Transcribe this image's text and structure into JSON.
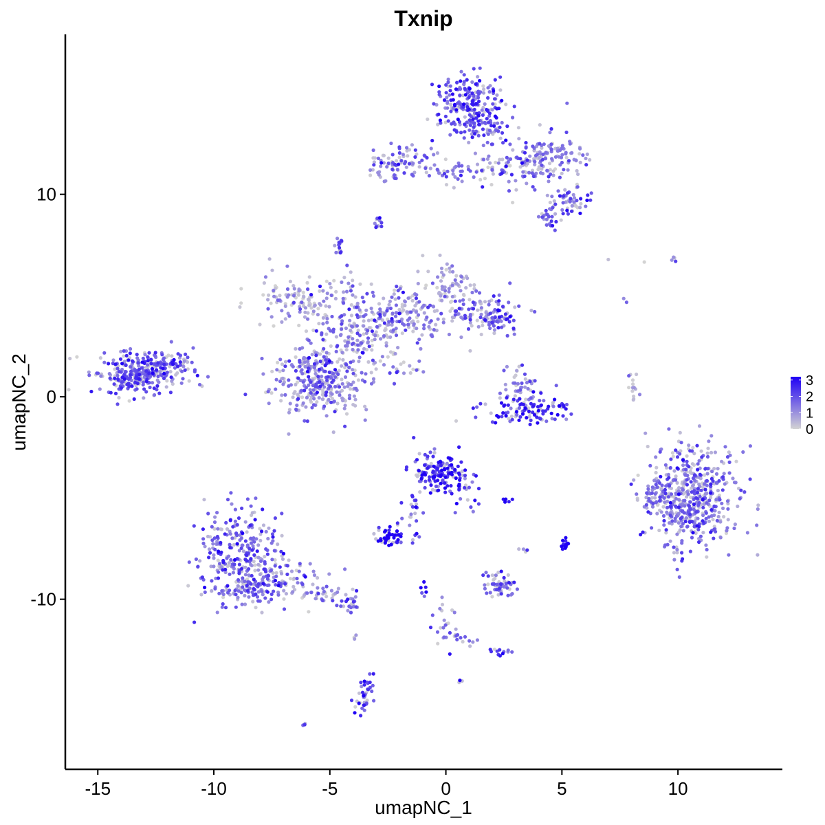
{
  "chart_data": {
    "type": "scatter",
    "title": "Txnip",
    "xlabel": "umapNC_1",
    "ylabel": "umapNC_2",
    "xlim": [
      -16.4,
      14.5
    ],
    "ylim": [
      -18.4,
      17.9
    ],
    "xticks": [
      -15,
      -10,
      -5,
      0,
      5,
      10
    ],
    "xtick_labels": [
      "-15",
      "-10",
      "-5",
      "0",
      "5",
      "10"
    ],
    "yticks": [
      -10,
      0,
      10
    ],
    "ytick_labels": [
      "-10",
      "0",
      "10"
    ],
    "grid": false,
    "color_scale": {
      "low_color": "#d3d3d3",
      "high_color": "#1f00f5",
      "min": 0,
      "max": 3.2,
      "ticks": [
        0,
        1,
        2,
        3
      ],
      "tick_labels": [
        "0",
        "1",
        "2",
        "3"
      ]
    },
    "legend_position": "right",
    "clusters": [
      {
        "cx": -13.2,
        "cy": 1.2,
        "sx": 0.9,
        "sy": 0.55,
        "n": 300,
        "mean": 1.8
      },
      {
        "cx": -11.8,
        "cy": 1.6,
        "sx": 0.45,
        "sy": 0.4,
        "n": 40,
        "mean": 1.2
      },
      {
        "cx": -5.5,
        "cy": 0.8,
        "sx": 1.0,
        "sy": 0.9,
        "n": 330,
        "mean": 1.3
      },
      {
        "cx": -6.2,
        "cy": 4.8,
        "sx": 1.1,
        "sy": 0.6,
        "n": 120,
        "mean": 0.9
      },
      {
        "cx": -3.6,
        "cy": 3.3,
        "sx": 0.9,
        "sy": 0.9,
        "n": 180,
        "mean": 1.2
      },
      {
        "cx": -1.5,
        "cy": 4.0,
        "sx": 0.9,
        "sy": 0.8,
        "n": 130,
        "mean": 1.2
      },
      {
        "cx": 0.0,
        "cy": 5.5,
        "sx": 0.5,
        "sy": 0.6,
        "n": 60,
        "mean": 0.9
      },
      {
        "cx": 1.5,
        "cy": 4.3,
        "sx": 0.8,
        "sy": 0.5,
        "n": 80,
        "mean": 1.4
      },
      {
        "cx": 2.2,
        "cy": 3.8,
        "sx": 0.45,
        "sy": 0.4,
        "n": 50,
        "mean": 1.6
      },
      {
        "cx": -2.2,
        "cy": 1.3,
        "sx": 0.6,
        "sy": 0.4,
        "n": 20,
        "mean": 1.4
      },
      {
        "cx": -4.6,
        "cy": 7.4,
        "sx": 0.12,
        "sy": 0.2,
        "n": 15,
        "mean": 1.8
      },
      {
        "cx": -4.0,
        "cy": 5.8,
        "sx": 0.15,
        "sy": 0.5,
        "n": 8,
        "mean": 1.6
      },
      {
        "cx": 3.5,
        "cy": -0.6,
        "sx": 0.9,
        "sy": 0.35,
        "n": 110,
        "mean": 2.3
      },
      {
        "cx": 3.3,
        "cy": 0.6,
        "sx": 0.4,
        "sy": 0.5,
        "n": 40,
        "mean": 1.2
      },
      {
        "cx": 8.1,
        "cy": 0.4,
        "sx": 0.15,
        "sy": 0.5,
        "n": 14,
        "mean": 1.2
      },
      {
        "cx": 1.0,
        "cy": 14.6,
        "sx": 0.7,
        "sy": 0.7,
        "n": 200,
        "mean": 2.0
      },
      {
        "cx": 1.7,
        "cy": 13.3,
        "sx": 0.5,
        "sy": 0.5,
        "n": 60,
        "mean": 1.8
      },
      {
        "cx": -2.0,
        "cy": 11.5,
        "sx": 0.7,
        "sy": 0.4,
        "n": 80,
        "mean": 1.4
      },
      {
        "cx": 0.5,
        "cy": 11.2,
        "sx": 1.2,
        "sy": 0.3,
        "n": 60,
        "mean": 1.2
      },
      {
        "cx": 3.5,
        "cy": 11.5,
        "sx": 0.9,
        "sy": 0.7,
        "n": 140,
        "mean": 1.4
      },
      {
        "cx": 5.0,
        "cy": 12.0,
        "sx": 0.6,
        "sy": 0.4,
        "n": 50,
        "mean": 1.1
      },
      {
        "cx": 5.4,
        "cy": 9.7,
        "sx": 0.4,
        "sy": 0.3,
        "n": 50,
        "mean": 1.6
      },
      {
        "cx": 4.5,
        "cy": 8.8,
        "sx": 0.25,
        "sy": 0.25,
        "n": 25,
        "mean": 1.7
      },
      {
        "cx": -2.9,
        "cy": 8.6,
        "sx": 0.12,
        "sy": 0.15,
        "n": 10,
        "mean": 1.8
      },
      {
        "cx": 10.6,
        "cy": -5.0,
        "sx": 1.0,
        "sy": 1.3,
        "n": 520,
        "mean": 1.5
      },
      {
        "cx": 9.0,
        "cy": -4.8,
        "sx": 0.3,
        "sy": 0.4,
        "n": 30,
        "mean": 0.8
      },
      {
        "cx": -0.3,
        "cy": -3.8,
        "sx": 0.55,
        "sy": 0.5,
        "n": 150,
        "mean": 2.5
      },
      {
        "cx": 0.9,
        "cy": -4.8,
        "sx": 0.3,
        "sy": 0.5,
        "n": 20,
        "mean": 2.0
      },
      {
        "cx": -1.4,
        "cy": -5.3,
        "sx": 0.2,
        "sy": 0.6,
        "n": 20,
        "mean": 2.0
      },
      {
        "cx": -2.5,
        "cy": -6.9,
        "sx": 0.3,
        "sy": 0.2,
        "n": 45,
        "mean": 3.0
      },
      {
        "cx": 5.1,
        "cy": -7.3,
        "sx": 0.1,
        "sy": 0.15,
        "n": 15,
        "mean": 3.0
      },
      {
        "cx": 2.7,
        "cy": -5.1,
        "sx": 0.1,
        "sy": 0.05,
        "n": 5,
        "mean": 2.8
      },
      {
        "cx": 2.4,
        "cy": -9.3,
        "sx": 0.4,
        "sy": 0.35,
        "n": 55,
        "mean": 1.7
      },
      {
        "cx": -8.8,
        "cy": -7.8,
        "sx": 0.9,
        "sy": 1.2,
        "n": 300,
        "mean": 1.7
      },
      {
        "cx": -7.8,
        "cy": -9.2,
        "sx": 1.0,
        "sy": 0.5,
        "n": 120,
        "mean": 1.3
      },
      {
        "cx": -5.5,
        "cy": -9.8,
        "sx": 0.6,
        "sy": 0.3,
        "n": 40,
        "mean": 1.2
      },
      {
        "cx": -4.2,
        "cy": -10.2,
        "sx": 0.3,
        "sy": 0.25,
        "n": 20,
        "mean": 1.6
      },
      {
        "cx": -3.5,
        "cy": -14.8,
        "sx": 0.2,
        "sy": 0.5,
        "n": 40,
        "mean": 2.0
      },
      {
        "cx": -0.3,
        "cy": -10.9,
        "sx": 0.3,
        "sy": 0.8,
        "n": 20,
        "mean": 1.6
      },
      {
        "cx": 0.5,
        "cy": -11.9,
        "sx": 0.5,
        "sy": 0.2,
        "n": 15,
        "mean": 1.5
      },
      {
        "cx": 2.3,
        "cy": -12.6,
        "sx": 0.3,
        "sy": 0.1,
        "n": 12,
        "mean": 2.0
      },
      {
        "cx": 0.6,
        "cy": -14.0,
        "sx": 0.05,
        "sy": 0.05,
        "n": 3,
        "mean": 3.0
      },
      {
        "cx": -6.1,
        "cy": -16.2,
        "sx": 0.05,
        "sy": 0.05,
        "n": 3,
        "mean": 2.0
      },
      {
        "cx": -3.9,
        "cy": -11.9,
        "sx": 0.05,
        "sy": 0.1,
        "n": 3,
        "mean": 0.5
      },
      {
        "cx": 9.9,
        "cy": 6.8,
        "sx": 0.1,
        "sy": 0.1,
        "n": 4,
        "mean": 1.5
      },
      {
        "cx": 7.0,
        "cy": 6.9,
        "sx": 0.05,
        "sy": 0.05,
        "n": 1,
        "mean": 0.3
      },
      {
        "cx": 7.7,
        "cy": 4.8,
        "sx": 0.05,
        "sy": 0.1,
        "n": 2,
        "mean": 0.4
      },
      {
        "cx": 8.5,
        "cy": 6.7,
        "sx": 0.05,
        "sy": 0.05,
        "n": 1,
        "mean": 0.3
      },
      {
        "cx": -1.0,
        "cy": -9.6,
        "sx": 0.1,
        "sy": 0.3,
        "n": 5,
        "mean": 2.8
      },
      {
        "cx": -1.2,
        "cy": -7.0,
        "sx": 0.15,
        "sy": 0.2,
        "n": 5,
        "mean": 2.2
      },
      {
        "cx": 3.4,
        "cy": -7.6,
        "sx": 0.1,
        "sy": 0.1,
        "n": 4,
        "mean": 1.3
      }
    ]
  }
}
